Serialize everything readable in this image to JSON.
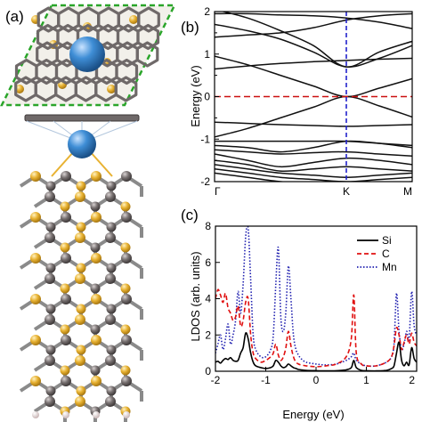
{
  "panels": {
    "a": "(a)",
    "b": "(b)",
    "c": "(c)"
  },
  "colors": {
    "si": "#e8b232",
    "c_atom": "#777070",
    "mn": "#3f8ed6",
    "h": "#e9dada",
    "boundary": "#2aa52a",
    "fermi": "#cc1111",
    "k_line": "#2222cc",
    "band": "#111111"
  },
  "chart_data": [
    {
      "id": "band-structure",
      "type": "line",
      "title": "",
      "ylabel": "Energy (eV)",
      "xlabel": "",
      "xlim": [
        0,
        1.5
      ],
      "ylim": [
        -2,
        2
      ],
      "yticks": [
        -2,
        -1,
        0,
        1,
        2
      ],
      "kpoints": [
        {
          "label": "Γ",
          "x": 0
        },
        {
          "label": "K",
          "x": 1
        },
        {
          "label": "M",
          "x": 1.5
        }
      ],
      "fermi_level": 0,
      "grid": false,
      "series": [
        {
          "x": [
            0,
            0.25,
            0.5,
            0.75,
            1,
            1.25,
            1.5
          ],
          "y": [
            2.05,
            1.85,
            1.55,
            1.2,
            0.7,
            1.05,
            1.3
          ]
        },
        {
          "x": [
            0,
            0.25,
            0.5,
            0.75,
            1,
            1.25,
            1.5
          ],
          "y": [
            1.7,
            1.55,
            1.35,
            1.05,
            0.7,
            0.9,
            1.2
          ]
        },
        {
          "x": [
            0,
            0.25,
            0.5,
            0.75,
            1,
            1.25,
            1.5
          ],
          "y": [
            1.95,
            1.95,
            1.92,
            1.9,
            1.85,
            1.75,
            1.6
          ]
        },
        {
          "x": [
            0,
            0.25,
            0.5,
            0.75,
            1,
            1.25,
            1.5
          ],
          "y": [
            1.4,
            1.45,
            1.5,
            1.62,
            1.8,
            1.9,
            1.95
          ]
        },
        {
          "x": [
            0,
            0.25,
            0.5,
            0.75,
            1,
            1.25,
            1.5
          ],
          "y": [
            0.65,
            0.72,
            0.78,
            0.82,
            0.85,
            0.88,
            0.9
          ]
        },
        {
          "x": [
            0,
            0.25,
            0.5,
            0.75,
            1,
            1.25,
            1.5
          ],
          "y": [
            0.95,
            0.75,
            0.5,
            0.25,
            0,
            0.2,
            0.42
          ]
        },
        {
          "x": [
            0,
            0.25,
            0.5,
            0.75,
            1,
            1.25,
            1.5
          ],
          "y": [
            -0.95,
            -0.75,
            -0.5,
            -0.25,
            0,
            -0.22,
            -0.48
          ]
        },
        {
          "x": [
            0,
            0.25,
            0.5,
            0.75,
            1,
            1.25,
            1.5
          ],
          "y": [
            -0.6,
            -0.63,
            -0.66,
            -0.68,
            -0.7,
            -0.68,
            -0.66
          ]
        },
        {
          "x": [
            0,
            0.25,
            0.5,
            0.75,
            1,
            1.25,
            1.5
          ],
          "y": [
            -1.05,
            -1.05,
            -1.05,
            -1.05,
            -1.05,
            -1.1,
            -1.15
          ]
        },
        {
          "x": [
            0,
            0.25,
            0.5,
            0.75,
            1,
            1.25,
            1.5
          ],
          "y": [
            -1.15,
            -1.2,
            -1.3,
            -1.2,
            -1.05,
            -1.1,
            -1.2
          ]
        },
        {
          "x": [
            0,
            0.25,
            0.5,
            0.75,
            1,
            1.25,
            1.5
          ],
          "y": [
            -1.25,
            -1.3,
            -1.35,
            -1.32,
            -1.3,
            -1.35,
            -1.4
          ]
        },
        {
          "x": [
            0,
            0.25,
            0.5,
            0.75,
            1,
            1.25,
            1.5
          ],
          "y": [
            -1.35,
            -1.5,
            -1.65,
            -1.55,
            -1.45,
            -1.5,
            -1.6
          ]
        },
        {
          "x": [
            0,
            0.25,
            0.5,
            0.75,
            1,
            1.25,
            1.5
          ],
          "y": [
            -1.5,
            -1.6,
            -1.75,
            -1.7,
            -1.65,
            -1.7,
            -1.75
          ]
        },
        {
          "x": [
            0,
            0.25,
            0.5,
            0.75,
            1,
            1.25,
            1.5
          ],
          "y": [
            -1.6,
            -1.7,
            -1.8,
            -1.85,
            -1.9,
            -1.85,
            -1.8
          ]
        },
        {
          "x": [
            0,
            0.25,
            0.5,
            0.75,
            1,
            1.25,
            1.5
          ],
          "y": [
            -1.7,
            -1.8,
            -1.9,
            -1.95,
            -2.0,
            -1.95,
            -1.9
          ]
        },
        {
          "x": [
            0,
            0.25,
            0.5,
            0.75,
            1,
            1.25,
            1.5
          ],
          "y": [
            -1.8,
            -1.9,
            -2.0,
            -2.05,
            -2.1,
            -2.05,
            -2.0
          ]
        }
      ]
    },
    {
      "id": "ldos",
      "type": "line",
      "title": "",
      "xlabel": "Energy (eV)",
      "ylabel": "LDOS (arb. units)",
      "xlim": [
        -2,
        2
      ],
      "ylim": [
        0,
        8
      ],
      "xticks": [
        -2,
        -1,
        0,
        1,
        2
      ],
      "yticks": [
        0,
        2,
        4,
        6,
        8
      ],
      "legend_position": "top-right",
      "grid": false,
      "series": [
        {
          "name": "Si",
          "color": "#000000",
          "dash": "solid",
          "x": [
            -2.0,
            -1.95,
            -1.9,
            -1.85,
            -1.8,
            -1.75,
            -1.7,
            -1.65,
            -1.6,
            -1.55,
            -1.5,
            -1.45,
            -1.4,
            -1.35,
            -1.3,
            -1.25,
            -1.2,
            -1.1,
            -1.0,
            -0.9,
            -0.85,
            -0.8,
            -0.75,
            -0.7,
            -0.65,
            -0.6,
            -0.55,
            -0.5,
            -0.45,
            -0.4,
            -0.35,
            -0.3,
            -0.2,
            0.0,
            0.2,
            0.4,
            0.6,
            0.7,
            0.75,
            0.8,
            0.9,
            1.0,
            1.2,
            1.4,
            1.5,
            1.55,
            1.6,
            1.65,
            1.7,
            1.75,
            1.8,
            1.85,
            1.9,
            1.95,
            2.0
          ],
          "y": [
            0.5,
            0.55,
            0.45,
            0.6,
            0.7,
            0.65,
            0.75,
            0.6,
            0.55,
            0.6,
            1.0,
            1.3,
            2.1,
            1.8,
            1.0,
            0.5,
            0.3,
            0.2,
            0.15,
            0.2,
            0.3,
            0.6,
            0.5,
            0.3,
            0.2,
            0.25,
            0.4,
            0.3,
            0.2,
            0.15,
            0.1,
            0.08,
            0.05,
            0.03,
            0.02,
            0.03,
            0.08,
            0.2,
            0.6,
            0.2,
            0.05,
            0.03,
            0.02,
            0.05,
            0.15,
            0.3,
            1.0,
            1.6,
            0.6,
            0.3,
            0.5,
            0.35,
            1.3,
            0.7,
            0.5
          ]
        },
        {
          "name": "C",
          "color": "#e01010",
          "dash": "dashed",
          "x": [
            -2.0,
            -1.95,
            -1.9,
            -1.85,
            -1.8,
            -1.75,
            -1.7,
            -1.65,
            -1.6,
            -1.55,
            -1.5,
            -1.45,
            -1.4,
            -1.35,
            -1.3,
            -1.25,
            -1.2,
            -1.1,
            -1.0,
            -0.9,
            -0.85,
            -0.8,
            -0.75,
            -0.7,
            -0.65,
            -0.6,
            -0.55,
            -0.5,
            -0.45,
            -0.4,
            -0.35,
            -0.3,
            -0.2,
            0.0,
            0.2,
            0.4,
            0.6,
            0.7,
            0.75,
            0.8,
            0.9,
            1.0,
            1.2,
            1.4,
            1.5,
            1.55,
            1.6,
            1.65,
            1.7,
            1.75,
            1.8,
            1.85,
            1.9,
            1.95,
            2.0
          ],
          "y": [
            4.0,
            4.5,
            4.2,
            3.8,
            4.3,
            3.5,
            3.2,
            2.8,
            3.0,
            3.6,
            2.5,
            2.8,
            3.8,
            4.0,
            2.0,
            1.0,
            0.7,
            0.5,
            0.6,
            0.8,
            1.0,
            1.5,
            0.9,
            0.6,
            0.8,
            1.3,
            2.2,
            1.4,
            0.8,
            0.5,
            0.4,
            0.35,
            0.3,
            0.25,
            0.3,
            0.4,
            0.8,
            1.8,
            4.2,
            1.0,
            0.4,
            0.3,
            0.3,
            0.5,
            0.8,
            1.4,
            2.4,
            2.0,
            1.2,
            1.6,
            2.0,
            1.5,
            2.1,
            1.6,
            1.4
          ]
        },
        {
          "name": "Mn",
          "color": "#2020b0",
          "dash": "dotted",
          "x": [
            -2.0,
            -1.95,
            -1.9,
            -1.85,
            -1.8,
            -1.75,
            -1.7,
            -1.65,
            -1.6,
            -1.55,
            -1.5,
            -1.45,
            -1.4,
            -1.35,
            -1.3,
            -1.25,
            -1.2,
            -1.1,
            -1.0,
            -0.9,
            -0.85,
            -0.8,
            -0.75,
            -0.7,
            -0.65,
            -0.6,
            -0.55,
            -0.5,
            -0.45,
            -0.4,
            -0.35,
            -0.3,
            -0.2,
            0.0,
            0.2,
            0.4,
            0.6,
            0.7,
            0.75,
            0.8,
            0.9,
            1.0,
            1.2,
            1.4,
            1.5,
            1.55,
            1.6,
            1.65,
            1.7,
            1.75,
            1.8,
            1.85,
            1.9,
            1.95,
            2.0
          ],
          "y": [
            1.0,
            1.5,
            2.0,
            1.2,
            1.8,
            2.6,
            1.5,
            2.0,
            2.8,
            4.4,
            3.2,
            4.8,
            7.4,
            7.9,
            5.0,
            2.0,
            1.2,
            0.8,
            0.8,
            1.2,
            2.0,
            4.8,
            6.8,
            3.0,
            2.2,
            3.3,
            5.8,
            4.0,
            2.0,
            1.2,
            0.9,
            0.7,
            0.5,
            0.4,
            0.35,
            0.4,
            0.6,
            0.8,
            1.0,
            0.6,
            0.4,
            0.3,
            0.3,
            0.5,
            0.8,
            1.5,
            4.3,
            2.2,
            1.2,
            1.5,
            2.2,
            1.8,
            4.4,
            2.5,
            2.0
          ]
        }
      ]
    }
  ]
}
